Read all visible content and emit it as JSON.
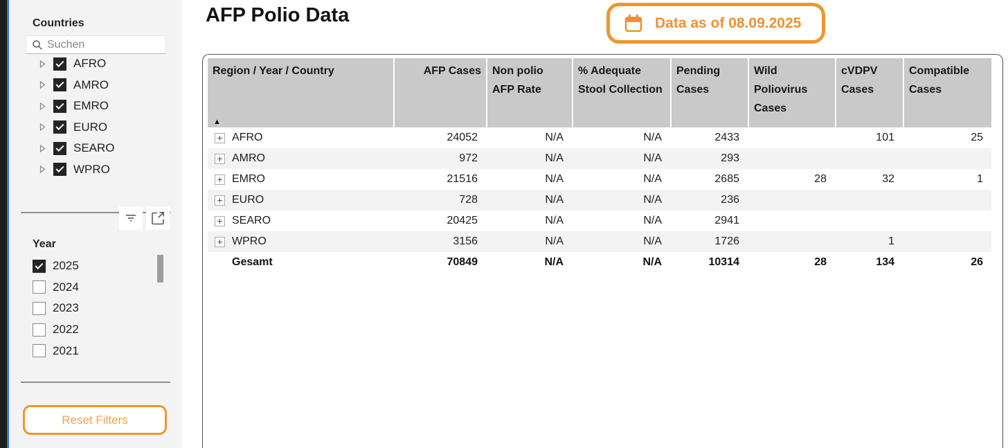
{
  "sidebar": {
    "countries": {
      "title": "Countries",
      "search_placeholder": "Suchen",
      "items": [
        {
          "label": "AFRO",
          "checked": true
        },
        {
          "label": "AMRO",
          "checked": true
        },
        {
          "label": "EMRO",
          "checked": true
        },
        {
          "label": "EURO",
          "checked": true
        },
        {
          "label": "SEARO",
          "checked": true
        },
        {
          "label": "WPRO",
          "checked": true
        }
      ]
    },
    "year": {
      "title": "Year",
      "items": [
        {
          "label": "2025",
          "checked": true
        },
        {
          "label": "2024",
          "checked": false
        },
        {
          "label": "2023",
          "checked": false
        },
        {
          "label": "2022",
          "checked": false
        },
        {
          "label": "2021",
          "checked": false
        }
      ]
    },
    "reset_button_label": "Reset Filters"
  },
  "header": {
    "title": "AFP Polio Data",
    "date_badge_text": "Data as of 08.09.2025"
  },
  "table": {
    "columns": [
      {
        "label": "Region / Year / Country",
        "align": "left"
      },
      {
        "label": "AFP Cases",
        "align": "right"
      },
      {
        "label": "Non polio AFP Rate",
        "align": "left"
      },
      {
        "label": "% Adequate Stool Collection",
        "align": "left"
      },
      {
        "label": "Pending Cases",
        "align": "left"
      },
      {
        "label": "Wild Poliovirus Cases",
        "align": "left"
      },
      {
        "label": "cVDPV Cases",
        "align": "left"
      },
      {
        "label": "Compatible Cases",
        "align": "left"
      }
    ],
    "sort": {
      "column": "Region / Year / Country",
      "direction": "ascending"
    },
    "rows": [
      {
        "label": "AFRO",
        "expandable": true,
        "total": false,
        "values": [
          "24052",
          "N/A",
          "N/A",
          "2433",
          "",
          "101",
          "25"
        ]
      },
      {
        "label": "AMRO",
        "expandable": true,
        "total": false,
        "values": [
          "972",
          "N/A",
          "N/A",
          "293",
          "",
          "",
          ""
        ]
      },
      {
        "label": "EMRO",
        "expandable": true,
        "total": false,
        "values": [
          "21516",
          "N/A",
          "N/A",
          "2685",
          "28",
          "32",
          "1"
        ]
      },
      {
        "label": "EURO",
        "expandable": true,
        "total": false,
        "values": [
          "728",
          "N/A",
          "N/A",
          "236",
          "",
          "",
          ""
        ]
      },
      {
        "label": "SEARO",
        "expandable": true,
        "total": false,
        "values": [
          "20425",
          "N/A",
          "N/A",
          "2941",
          "",
          "",
          ""
        ]
      },
      {
        "label": "WPRO",
        "expandable": true,
        "total": false,
        "values": [
          "3156",
          "N/A",
          "N/A",
          "1726",
          "",
          "1",
          ""
        ]
      },
      {
        "label": "Gesamt",
        "expandable": false,
        "total": true,
        "values": [
          "70849",
          "N/A",
          "N/A",
          "10314",
          "28",
          "134",
          "26"
        ]
      }
    ]
  },
  "icons": {
    "sort_ascending": "▲",
    "search": "magnifier",
    "tree_chevron": "chevron-right",
    "filter": "filter-lines",
    "focus_mode": "pop-out-arrow",
    "calendar": "calendar",
    "expand_row": "plus-box"
  },
  "colors": {
    "accent_orange": "#F0962E",
    "orange_text": "#EE9130",
    "reset_text_orange": "#F2A14C",
    "selection_blue": "#2b7cd3",
    "header_gray": "#c9c9c9",
    "row_alt_gray": "#f3f3f3",
    "checkbox_dark": "#252423"
  }
}
